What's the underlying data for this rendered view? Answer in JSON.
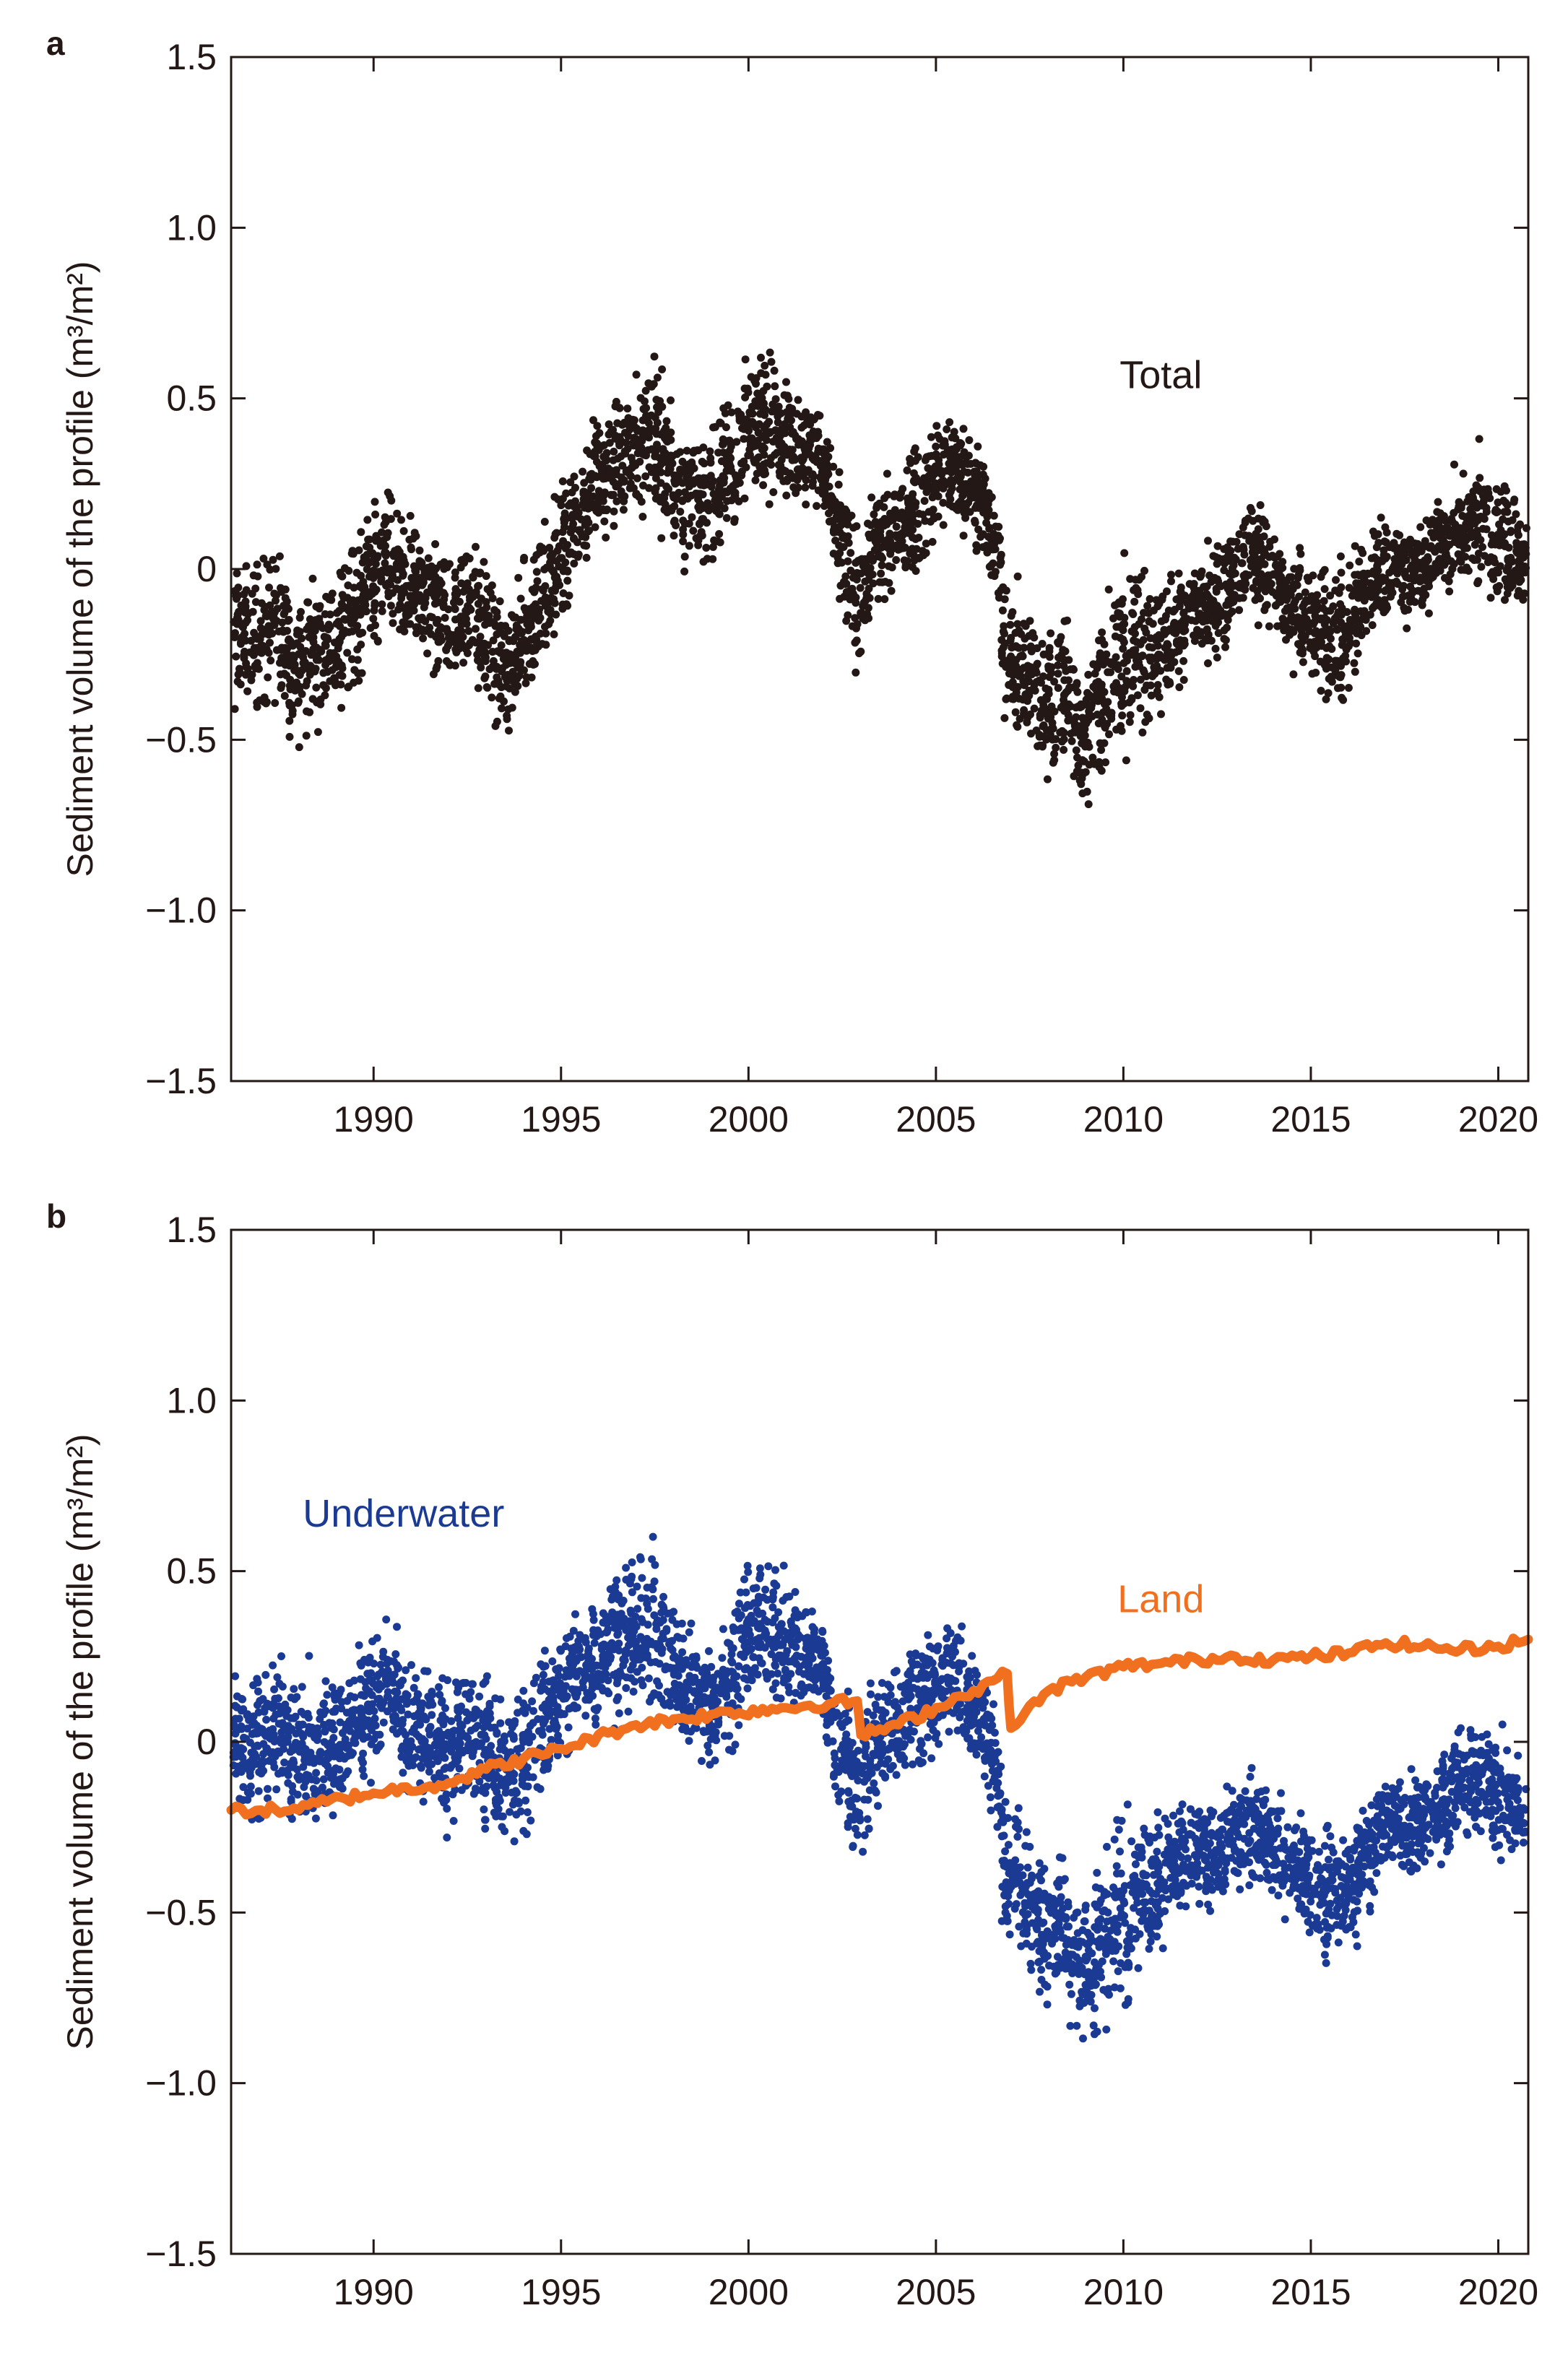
{
  "chart_data": [
    {
      "panel": "a",
      "type": "scatter",
      "ylabel": "Sediment volume of the profile (m³/m²)",
      "xlabel": "",
      "xlim": [
        1986.2,
        2020.8
      ],
      "ylim": [
        -1.5,
        1.5
      ],
      "xticks": [
        1990,
        1995,
        2000,
        2005,
        2010,
        2015,
        2020
      ],
      "yticks": [
        -1.5,
        -1.0,
        -0.5,
        0,
        0.5,
        1.0,
        1.5
      ],
      "ytick_labels": [
        "−1.5",
        "−1.0",
        "−0.5",
        "0",
        "0.5",
        "1.0",
        "1.5"
      ],
      "annotations": [
        {
          "text": "Total",
          "x": 2011.0,
          "y": 0.53,
          "color": "#231815"
        }
      ],
      "series": [
        {
          "name": "Total",
          "kind": "scatter",
          "color": "#231815",
          "x": [
            1986.5,
            1987.0,
            1987.5,
            1988.0,
            1988.5,
            1989.0,
            1989.5,
            1990.0,
            1990.5,
            1991.0,
            1991.5,
            1992.0,
            1992.5,
            1993.0,
            1993.5,
            1994.0,
            1994.5,
            1995.0,
            1995.5,
            1996.0,
            1996.5,
            1997.0,
            1997.5,
            1998.0,
            1998.5,
            1999.0,
            1999.5,
            2000.0,
            2000.5,
            2001.0,
            2001.5,
            2002.0,
            2002.5,
            2003.0,
            2003.5,
            2004.0,
            2004.5,
            2005.0,
            2005.5,
            2006.0,
            2006.5,
            2007.0,
            2007.5,
            2008.0,
            2008.5,
            2009.0,
            2009.5,
            2010.0,
            2010.5,
            2011.0,
            2011.5,
            2012.0,
            2012.5,
            2013.0,
            2013.5,
            2014.0,
            2014.5,
            2015.0,
            2015.5,
            2016.0,
            2016.5,
            2017.0,
            2017.5,
            2018.0,
            2018.5,
            2019.0,
            2019.5,
            2020.0,
            2020.5
          ],
          "center": [
            -0.2,
            -0.2,
            -0.15,
            -0.3,
            -0.25,
            -0.2,
            -0.15,
            -0.05,
            0.05,
            -0.05,
            -0.1,
            -0.2,
            -0.1,
            -0.15,
            -0.3,
            -0.25,
            -0.1,
            0.0,
            0.15,
            0.25,
            0.3,
            0.35,
            0.4,
            0.3,
            0.2,
            0.2,
            0.25,
            0.4,
            0.45,
            0.4,
            0.35,
            0.35,
            0.1,
            -0.1,
            0.05,
            0.1,
            0.15,
            0.25,
            0.3,
            0.25,
            0.2,
            -0.25,
            -0.3,
            -0.4,
            -0.35,
            -0.5,
            -0.4,
            -0.3,
            -0.2,
            -0.25,
            -0.2,
            -0.1,
            -0.1,
            -0.05,
            0.05,
            0.0,
            -0.1,
            -0.15,
            -0.2,
            -0.2,
            -0.1,
            0.0,
            0.0,
            0.0,
            0.05,
            0.1,
            0.15,
            0.1,
            0.05
          ],
          "spread": [
            0.2,
            0.22,
            0.2,
            0.2,
            0.2,
            0.2,
            0.2,
            0.2,
            0.18,
            0.18,
            0.2,
            0.2,
            0.2,
            0.22,
            0.2,
            0.2,
            0.2,
            0.2,
            0.18,
            0.18,
            0.2,
            0.2,
            0.22,
            0.2,
            0.2,
            0.18,
            0.2,
            0.2,
            0.2,
            0.18,
            0.15,
            0.15,
            0.18,
            0.2,
            0.18,
            0.15,
            0.18,
            0.18,
            0.18,
            0.15,
            0.15,
            0.22,
            0.2,
            0.2,
            0.2,
            0.22,
            0.25,
            0.3,
            0.22,
            0.18,
            0.15,
            0.15,
            0.15,
            0.15,
            0.15,
            0.15,
            0.15,
            0.15,
            0.2,
            0.2,
            0.15,
            0.15,
            0.15,
            0.15,
            0.15,
            0.15,
            0.18,
            0.18,
            0.15
          ]
        }
      ]
    },
    {
      "panel": "b",
      "type": "scatter",
      "ylabel": "Sediment volume of the profile (m³/m²)",
      "xlabel": "",
      "xlim": [
        1986.2,
        2020.8
      ],
      "ylim": [
        -1.5,
        1.5
      ],
      "xticks": [
        1990,
        1995,
        2000,
        2005,
        2010,
        2015,
        2020
      ],
      "yticks": [
        -1.5,
        -1.0,
        -0.5,
        0,
        0.5,
        1.0,
        1.5
      ],
      "ytick_labels": [
        "−1.5",
        "−1.0",
        "−0.5",
        "0",
        "0.5",
        "1.0",
        "1.5"
      ],
      "annotations": [
        {
          "text": "Underwater",
          "x": 1990.8,
          "y": 0.63,
          "color": "#1b3a93"
        },
        {
          "text": "Land",
          "x": 2011.0,
          "y": 0.38,
          "color": "#f07020"
        }
      ],
      "series": [
        {
          "name": "Underwater",
          "kind": "scatter",
          "color": "#1b3a93",
          "x": [
            1986.5,
            1987.0,
            1987.5,
            1988.0,
            1988.5,
            1989.0,
            1989.5,
            1990.0,
            1990.5,
            1991.0,
            1991.5,
            1992.0,
            1992.5,
            1993.0,
            1993.5,
            1994.0,
            1994.5,
            1995.0,
            1995.5,
            1996.0,
            1996.5,
            1997.0,
            1997.5,
            1998.0,
            1998.5,
            1999.0,
            1999.5,
            2000.0,
            2000.5,
            2001.0,
            2001.5,
            2002.0,
            2002.5,
            2003.0,
            2003.5,
            2004.0,
            2004.5,
            2005.0,
            2005.5,
            2006.0,
            2006.5,
            2007.0,
            2007.5,
            2008.0,
            2008.5,
            2009.0,
            2009.5,
            2010.0,
            2010.5,
            2011.0,
            2011.5,
            2012.0,
            2012.5,
            2013.0,
            2013.5,
            2014.0,
            2014.5,
            2015.0,
            2015.5,
            2016.0,
            2016.5,
            2017.0,
            2017.5,
            2018.0,
            2018.5,
            2019.0,
            2019.5,
            2020.0,
            2020.5
          ],
          "center": [
            0.0,
            0.0,
            0.05,
            -0.05,
            0.0,
            0.0,
            0.05,
            0.1,
            0.15,
            0.05,
            0.0,
            -0.05,
            0.05,
            0.0,
            -0.1,
            -0.1,
            0.05,
            0.1,
            0.2,
            0.25,
            0.3,
            0.3,
            0.35,
            0.25,
            0.15,
            0.1,
            0.15,
            0.3,
            0.35,
            0.3,
            0.25,
            0.25,
            0.0,
            -0.15,
            0.0,
            0.05,
            0.1,
            0.15,
            0.2,
            0.1,
            0.05,
            -0.35,
            -0.45,
            -0.55,
            -0.55,
            -0.65,
            -0.6,
            -0.55,
            -0.45,
            -0.4,
            -0.35,
            -0.3,
            -0.35,
            -0.3,
            -0.25,
            -0.3,
            -0.35,
            -0.4,
            -0.45,
            -0.45,
            -0.35,
            -0.25,
            -0.25,
            -0.25,
            -0.2,
            -0.15,
            -0.1,
            -0.15,
            -0.2
          ],
          "spread": [
            0.2,
            0.22,
            0.2,
            0.2,
            0.2,
            0.2,
            0.2,
            0.2,
            0.18,
            0.18,
            0.2,
            0.2,
            0.2,
            0.22,
            0.2,
            0.2,
            0.2,
            0.2,
            0.18,
            0.18,
            0.2,
            0.2,
            0.22,
            0.2,
            0.2,
            0.18,
            0.2,
            0.2,
            0.2,
            0.18,
            0.15,
            0.15,
            0.18,
            0.2,
            0.18,
            0.15,
            0.18,
            0.18,
            0.18,
            0.15,
            0.15,
            0.22,
            0.2,
            0.2,
            0.2,
            0.22,
            0.25,
            0.3,
            0.22,
            0.18,
            0.15,
            0.15,
            0.15,
            0.15,
            0.15,
            0.15,
            0.15,
            0.15,
            0.2,
            0.2,
            0.15,
            0.15,
            0.15,
            0.15,
            0.15,
            0.15,
            0.18,
            0.18,
            0.15
          ]
        },
        {
          "name": "Land",
          "kind": "line",
          "color": "#f07020",
          "x": [
            1986.2,
            1987.0,
            1988.0,
            1988.5,
            1990.0,
            1992.0,
            1993.0,
            1995.0,
            1997.0,
            1999.0,
            2001.0,
            2002.9,
            2003.0,
            2004.0,
            2005.0,
            2006.0,
            2006.9,
            2007.0,
            2008.0,
            2009.0,
            2010.0,
            2011.0,
            2012.0,
            2013.0,
            2014.0,
            2015.0,
            2016.0,
            2017.0,
            2018.0,
            2019.0,
            2020.0,
            2020.8
          ],
          "y": [
            -0.2,
            -0.2,
            -0.2,
            -0.18,
            -0.15,
            -0.12,
            -0.08,
            -0.02,
            0.05,
            0.08,
            0.1,
            0.12,
            0.02,
            0.05,
            0.1,
            0.15,
            0.2,
            0.04,
            0.15,
            0.19,
            0.22,
            0.23,
            0.24,
            0.25,
            0.24,
            0.25,
            0.26,
            0.29,
            0.28,
            0.27,
            0.28,
            0.3
          ]
        }
      ]
    }
  ]
}
